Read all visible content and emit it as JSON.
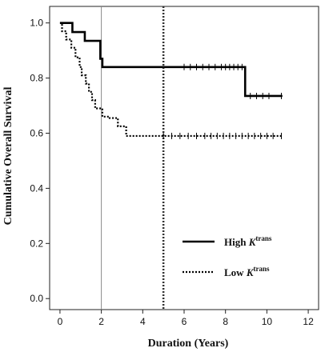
{
  "chart_data": {
    "type": "line",
    "xlabel": "Duration (Years)",
    "ylabel": "Cumulative Overall Survival",
    "xlim": [
      -0.5,
      12.5
    ],
    "ylim": [
      -0.04,
      1.06
    ],
    "xticks": [
      0,
      2,
      4,
      6,
      8,
      10,
      12
    ],
    "yticks": [
      0.0,
      0.2,
      0.4,
      0.6,
      0.8,
      1.0
    ],
    "xtick_labels": [
      "0",
      "2",
      "4",
      "6",
      "8",
      "10",
      "12"
    ],
    "ytick_labels": [
      "0.0",
      "0.2",
      "0.4",
      "0.6",
      "0.8",
      "1.0"
    ],
    "grid": false,
    "reference_lines": [
      {
        "x": 2,
        "style": "solid-thin"
      },
      {
        "x": 5,
        "style": "dotted-thick"
      }
    ],
    "legend": {
      "position": "lower-right",
      "entries": [
        {
          "label": "High ",
          "superscript": "trans",
          "italic": "K",
          "style": "solid"
        },
        {
          "label": "Low ",
          "superscript": "trans",
          "italic": "K",
          "style": "dotted"
        }
      ]
    },
    "series": [
      {
        "name": "High Ktrans",
        "style": "solid",
        "color": "#000000",
        "steps": [
          [
            0,
            1.0
          ],
          [
            0.6,
            0.967
          ],
          [
            1.2,
            0.935
          ],
          [
            1.95,
            0.87
          ],
          [
            2.05,
            0.84
          ],
          [
            8.95,
            0.735
          ],
          [
            10.75,
            0.735
          ]
        ],
        "censored": [
          6.0,
          6.3,
          6.6,
          6.9,
          7.2,
          7.5,
          7.8,
          8.0,
          8.2,
          8.4,
          8.6,
          8.8,
          9.2,
          9.5,
          9.8,
          10.1,
          10.7
        ]
      },
      {
        "name": "Low Ktrans",
        "style": "dotted",
        "color": "#000000",
        "steps": [
          [
            0,
            1.0
          ],
          [
            0.1,
            0.97
          ],
          [
            0.3,
            0.94
          ],
          [
            0.55,
            0.91
          ],
          [
            0.75,
            0.875
          ],
          [
            0.95,
            0.84
          ],
          [
            1.05,
            0.81
          ],
          [
            1.25,
            0.78
          ],
          [
            1.4,
            0.75
          ],
          [
            1.55,
            0.72
          ],
          [
            1.7,
            0.69
          ],
          [
            2.05,
            0.66
          ],
          [
            2.4,
            0.655
          ],
          [
            2.8,
            0.625
          ],
          [
            3.2,
            0.59
          ],
          [
            10.75,
            0.59
          ]
        ],
        "censored": [
          5.0,
          5.4,
          5.8,
          6.2,
          6.6,
          7.0,
          7.3,
          7.6,
          7.9,
          8.2,
          8.5,
          8.8,
          9.1,
          9.4,
          9.7,
          10.0,
          10.3,
          10.7
        ]
      }
    ]
  }
}
